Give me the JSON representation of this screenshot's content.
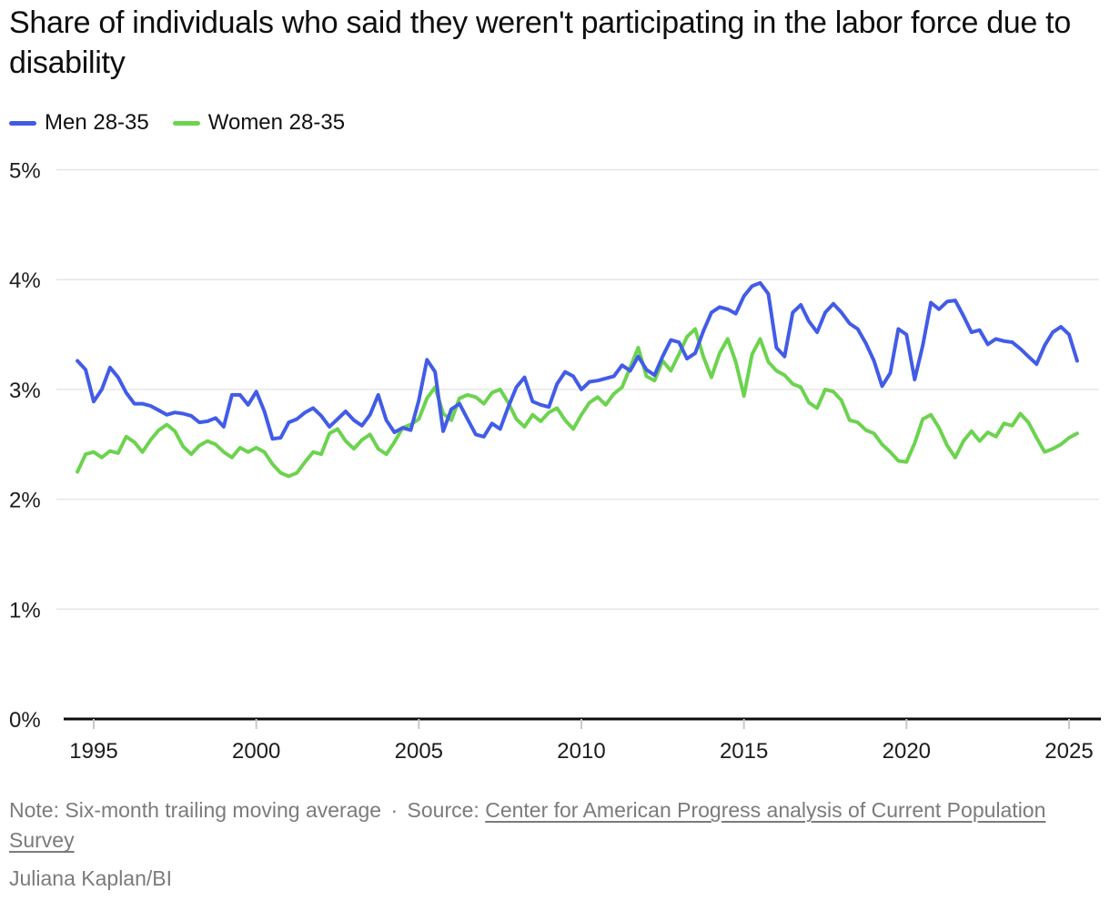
{
  "title": "Share of individuals who said they weren't participating in the labor force due to disability",
  "footer": {
    "note": "Note: Six-month trailing moving average",
    "separator": "·",
    "source_label": "Source:",
    "source_link": "Center for American Progress analysis of Current Population Survey",
    "byline": "Juliana Kaplan/BI"
  },
  "chart_data": {
    "type": "line",
    "title": "Share of individuals who said they weren't participating in the labor force due to disability",
    "xlabel": "",
    "ylabel": "",
    "unit": "%",
    "xlim": [
      1994.3,
      2025.6
    ],
    "ylim": [
      0,
      5
    ],
    "grid": true,
    "legend_position": "top-left",
    "note": "Six-month trailing moving average",
    "x_ticks": [
      {
        "label": "1995",
        "value": 1995
      },
      {
        "label": "2000",
        "value": 2000
      },
      {
        "label": "2005",
        "value": 2005
      },
      {
        "label": "2010",
        "value": 2010
      },
      {
        "label": "2015",
        "value": 2015
      },
      {
        "label": "2020",
        "value": 2020
      },
      {
        "label": "2025",
        "value": 2025
      }
    ],
    "y_ticks": [
      {
        "label": "5%",
        "value": 5
      },
      {
        "label": "4%",
        "value": 4
      },
      {
        "label": "3%",
        "value": 3
      },
      {
        "label": "2%",
        "value": 2
      },
      {
        "label": "1%",
        "value": 1
      },
      {
        "label": "0%",
        "value": 0
      }
    ],
    "series": [
      {
        "name": "Men 28-35",
        "color": "#425CE7",
        "x_start": 1994.5,
        "x_step": 0.25,
        "values": [
          3.26,
          3.18,
          2.89,
          3.0,
          3.2,
          3.11,
          2.97,
          2.87,
          2.87,
          2.85,
          2.81,
          2.77,
          2.79,
          2.78,
          2.76,
          2.7,
          2.71,
          2.74,
          2.66,
          2.95,
          2.95,
          2.86,
          2.98,
          2.8,
          2.55,
          2.56,
          2.7,
          2.73,
          2.79,
          2.83,
          2.76,
          2.66,
          2.73,
          2.8,
          2.72,
          2.67,
          2.77,
          2.95,
          2.72,
          2.61,
          2.65,
          2.63,
          2.9,
          3.27,
          3.16,
          2.62,
          2.82,
          2.87,
          2.73,
          2.59,
          2.57,
          2.69,
          2.64,
          2.84,
          3.02,
          3.11,
          2.89,
          2.86,
          2.84,
          3.05,
          3.16,
          3.12,
          3.0,
          3.07,
          3.08,
          3.1,
          3.12,
          3.22,
          3.17,
          3.3,
          3.18,
          3.13,
          3.3,
          3.45,
          3.43,
          3.28,
          3.33,
          3.53,
          3.7,
          3.75,
          3.73,
          3.69,
          3.85,
          3.94,
          3.97,
          3.87,
          3.38,
          3.3,
          3.7,
          3.77,
          3.62,
          3.52,
          3.7,
          3.78,
          3.7,
          3.6,
          3.55,
          3.42,
          3.26,
          3.03,
          3.15,
          3.55,
          3.5,
          3.09,
          3.4,
          3.79,
          3.73,
          3.8,
          3.81,
          3.67,
          3.52,
          3.54,
          3.41,
          3.46,
          3.44,
          3.43,
          3.37,
          3.3,
          3.23,
          3.4,
          3.52,
          3.57,
          3.5,
          3.26
        ]
      },
      {
        "name": "Women 28-35",
        "color": "#6CD34F",
        "x_start": 1994.5,
        "x_step": 0.25,
        "values": [
          2.25,
          2.41,
          2.43,
          2.38,
          2.44,
          2.42,
          2.57,
          2.52,
          2.43,
          2.54,
          2.63,
          2.68,
          2.62,
          2.48,
          2.41,
          2.49,
          2.53,
          2.5,
          2.43,
          2.38,
          2.47,
          2.43,
          2.47,
          2.43,
          2.32,
          2.24,
          2.21,
          2.24,
          2.34,
          2.43,
          2.41,
          2.6,
          2.64,
          2.53,
          2.46,
          2.54,
          2.59,
          2.46,
          2.41,
          2.52,
          2.65,
          2.68,
          2.73,
          2.92,
          3.02,
          2.78,
          2.72,
          2.92,
          2.95,
          2.93,
          2.87,
          2.97,
          3.0,
          2.88,
          2.73,
          2.66,
          2.77,
          2.71,
          2.79,
          2.83,
          2.72,
          2.64,
          2.77,
          2.88,
          2.93,
          2.86,
          2.96,
          3.02,
          3.2,
          3.38,
          3.12,
          3.08,
          3.26,
          3.17,
          3.32,
          3.48,
          3.55,
          3.3,
          3.11,
          3.33,
          3.46,
          3.25,
          2.94,
          3.32,
          3.46,
          3.25,
          3.17,
          3.13,
          3.05,
          3.02,
          2.88,
          2.83,
          3.0,
          2.98,
          2.9,
          2.72,
          2.7,
          2.63,
          2.6,
          2.5,
          2.43,
          2.35,
          2.34,
          2.51,
          2.73,
          2.77,
          2.65,
          2.49,
          2.38,
          2.53,
          2.62,
          2.53,
          2.61,
          2.57,
          2.69,
          2.67,
          2.78,
          2.7,
          2.56,
          2.43,
          2.46,
          2.5,
          2.56,
          2.6
        ]
      }
    ]
  }
}
